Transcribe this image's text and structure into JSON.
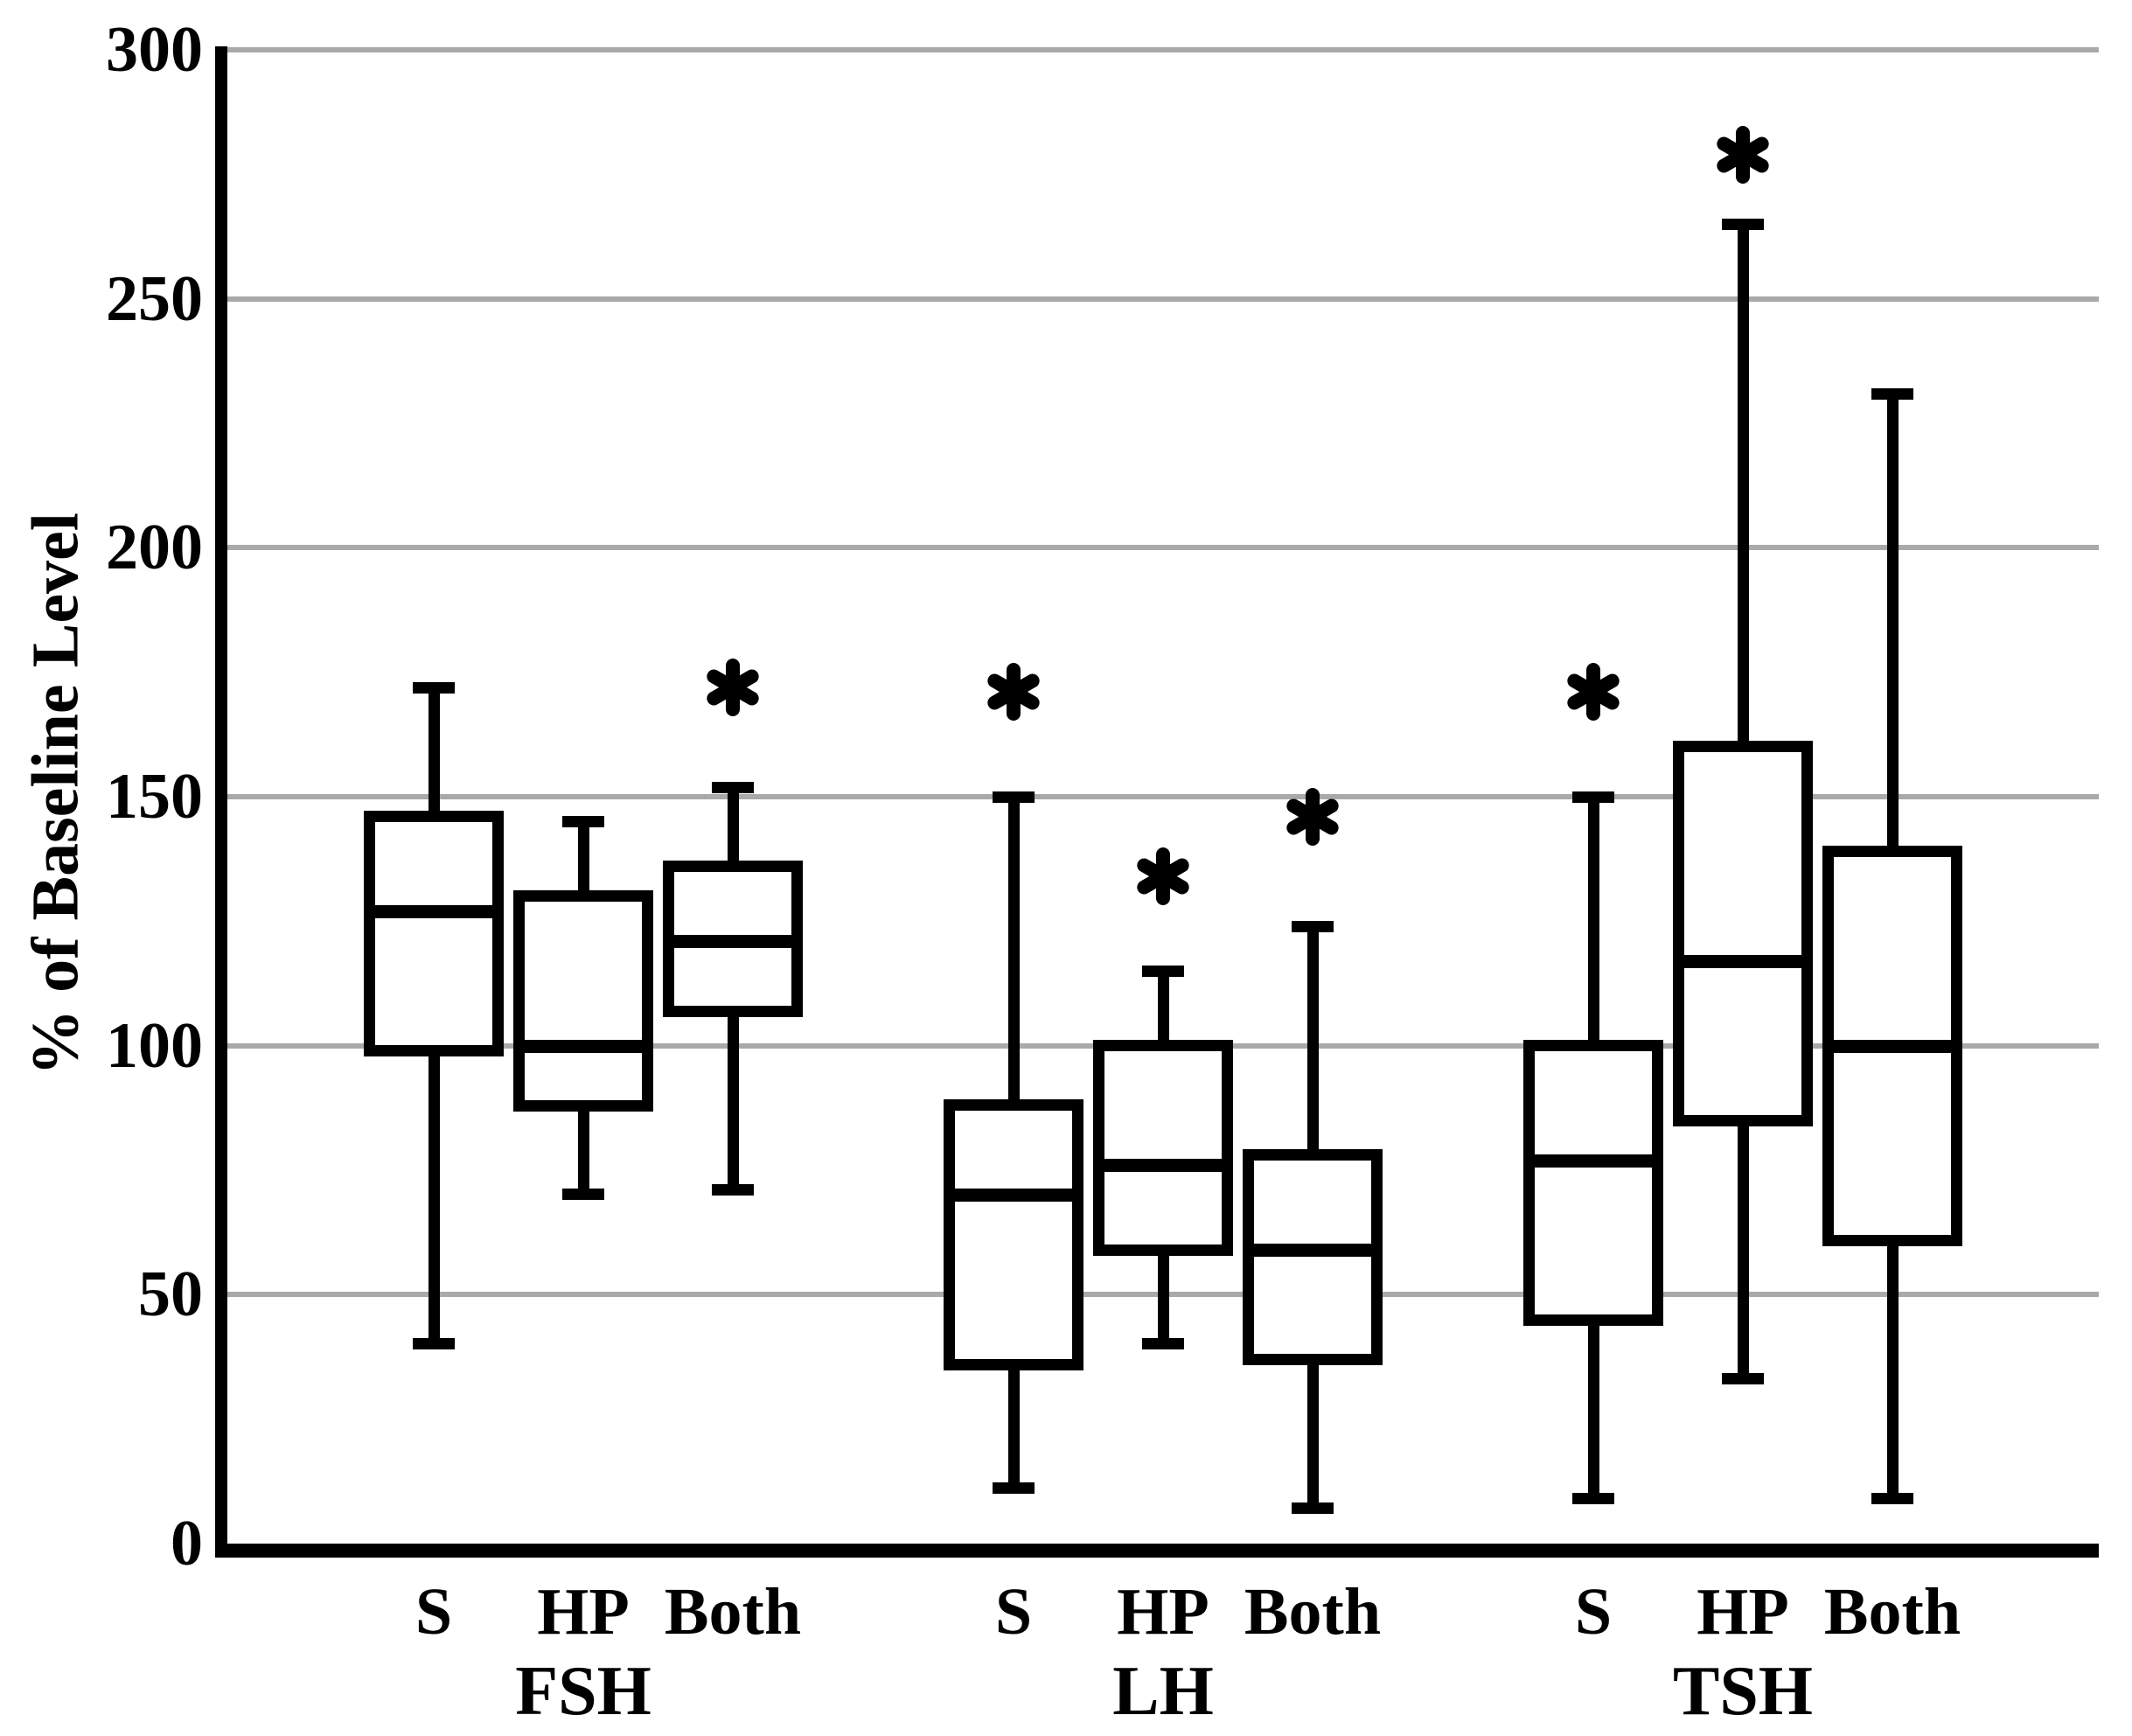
{
  "chart_data": {
    "type": "box",
    "title": "",
    "ylabel": "% of Baseline Level",
    "xlabel": "",
    "ylim": [
      0,
      300
    ],
    "yticks": [
      0,
      50,
      100,
      150,
      200,
      250,
      300
    ],
    "grid": "horizontal",
    "grid_color": "#a9a9a9",
    "line_color": "#000000",
    "box_fill": "#ffffff",
    "legend": "none",
    "annotation_symbol": "*",
    "groups": [
      {
        "label": "FSH",
        "boxes": [
          {
            "category": "S",
            "whislo": 40,
            "q1": 99,
            "median": 127,
            "q3": 146,
            "whishi": 172,
            "asterisk": null
          },
          {
            "category": "HP",
            "whislo": 70,
            "q1": 88,
            "median": 100,
            "q3": 130,
            "whishi": 145,
            "asterisk": null
          },
          {
            "category": "Both",
            "whislo": 71,
            "q1": 107,
            "median": 121,
            "q3": 136,
            "whishi": 152,
            "asterisk": 172
          }
        ]
      },
      {
        "label": "LH",
        "boxes": [
          {
            "category": "S",
            "whislo": 11,
            "q1": 36,
            "median": 70,
            "q3": 88,
            "whishi": 150,
            "asterisk": 171
          },
          {
            "category": "HP",
            "whislo": 40,
            "q1": 59,
            "median": 76,
            "q3": 100,
            "whishi": 115,
            "asterisk": 134
          },
          {
            "category": "Both",
            "whislo": 7,
            "q1": 37,
            "median": 59,
            "q3": 78,
            "whishi": 124,
            "asterisk": 146
          }
        ]
      },
      {
        "label": "TSH",
        "boxes": [
          {
            "category": "S",
            "whislo": 9,
            "q1": 45,
            "median": 77,
            "q3": 100,
            "whishi": 150,
            "asterisk": 171
          },
          {
            "category": "HP",
            "whislo": 33,
            "q1": 85,
            "median": 117,
            "q3": 160,
            "whishi": 265,
            "asterisk": 279
          },
          {
            "category": "Both",
            "whislo": 9,
            "q1": 61,
            "median": 100,
            "q3": 139,
            "whishi": 231,
            "asterisk": null
          }
        ]
      }
    ]
  }
}
